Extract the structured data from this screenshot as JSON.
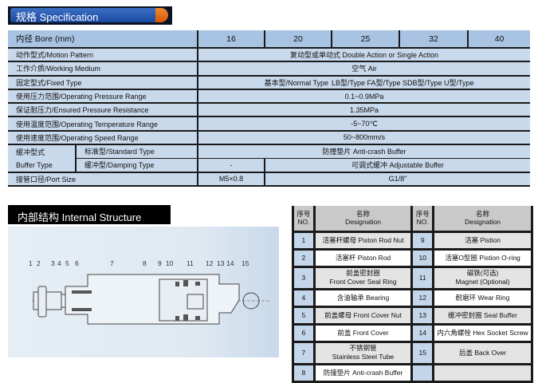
{
  "spec": {
    "title": "规格 Specification",
    "bore_label": "内径 Bore (mm)",
    "bores": [
      "16",
      "20",
      "25",
      "32",
      "40"
    ],
    "rows": [
      {
        "label": "动作型式/Motion Pattern",
        "value": "复动型或单动式 Double Action or Single Action"
      },
      {
        "label": "工作介质/Working Medium",
        "value": "空气 Air"
      },
      {
        "label": "固定型式/Fixed Type",
        "value": "基本型/Normal Type",
        "value2": "LB型/Type  FA型/Type  SDB型/Type  U型/Type"
      },
      {
        "label": "使用压力范围/Operating Pressure Range",
        "value": "0.1~0.9MPa"
      },
      {
        "label": "保证耐压力/Ensured Pressure Resistance",
        "value": "1.35MPa"
      },
      {
        "label": "使用温度范围/Operating Temperature Range",
        "value": "-5~70℃"
      },
      {
        "label": "使用速度范围/Operating Speed Range",
        "value": "50~800mm/s"
      }
    ],
    "buffer": {
      "label_cn": "缓冲型式",
      "label_en": "Buffer Type",
      "standard_label": "标准型/Standard Type",
      "standard_value": "防撞垫片 Anti-crash Buffer",
      "damping_label": "缓冲型/Damping Type",
      "damping_16": "-",
      "damping_value": "可调式缓冲 Adjustable Buffer"
    },
    "port": {
      "label": "接管口径/Port Size",
      "v16": "M5×0.8",
      "value": "G1/8\""
    }
  },
  "internal": {
    "title": "内部结构 Internal Structure",
    "callouts": [
      "1",
      "2",
      "3",
      "4",
      "5",
      "6",
      "7",
      "8",
      "9",
      "10",
      "11",
      "12",
      "13",
      "14",
      "15"
    ]
  },
  "parts": {
    "no_header_cn": "序号",
    "no_header_en": "NO.",
    "name_header_cn": "名称",
    "name_header_en": "Designation",
    "items": [
      {
        "no": "1",
        "name": "活塞杆螺母 Piston Rod Nut"
      },
      {
        "no": "2",
        "name": "活塞杆 Piston Rod"
      },
      {
        "no": "3",
        "name_cn": "前盖密封圈",
        "name": "Front Cover Seal Ring"
      },
      {
        "no": "4",
        "name": "含油轴承 Bearing"
      },
      {
        "no": "5",
        "name": "前盖螺母 Front Cover Nut"
      },
      {
        "no": "6",
        "name": "前盖 Front Cover"
      },
      {
        "no": "7",
        "name_cn": "不锈钢管",
        "name": "Stainless Steel Tube"
      },
      {
        "no": "8",
        "name": "防撞垫片 Anti-crash Buffer"
      },
      {
        "no": "9",
        "name": "活塞 Pistion"
      },
      {
        "no": "10",
        "name": "活塞O型圈 Pistion O-ring"
      },
      {
        "no": "11",
        "name_cn": "磁铁(可选)",
        "name": "Magnet (Optional)"
      },
      {
        "no": "12",
        "name": "耐磨环 Wear Ring"
      },
      {
        "no": "13",
        "name": "缓冲密封圈 Seal Buffer"
      },
      {
        "no": "14",
        "name": "内六角螺栓 Hex Socket Screw"
      },
      {
        "no": "15",
        "name": "后盖 Back Over"
      }
    ]
  }
}
